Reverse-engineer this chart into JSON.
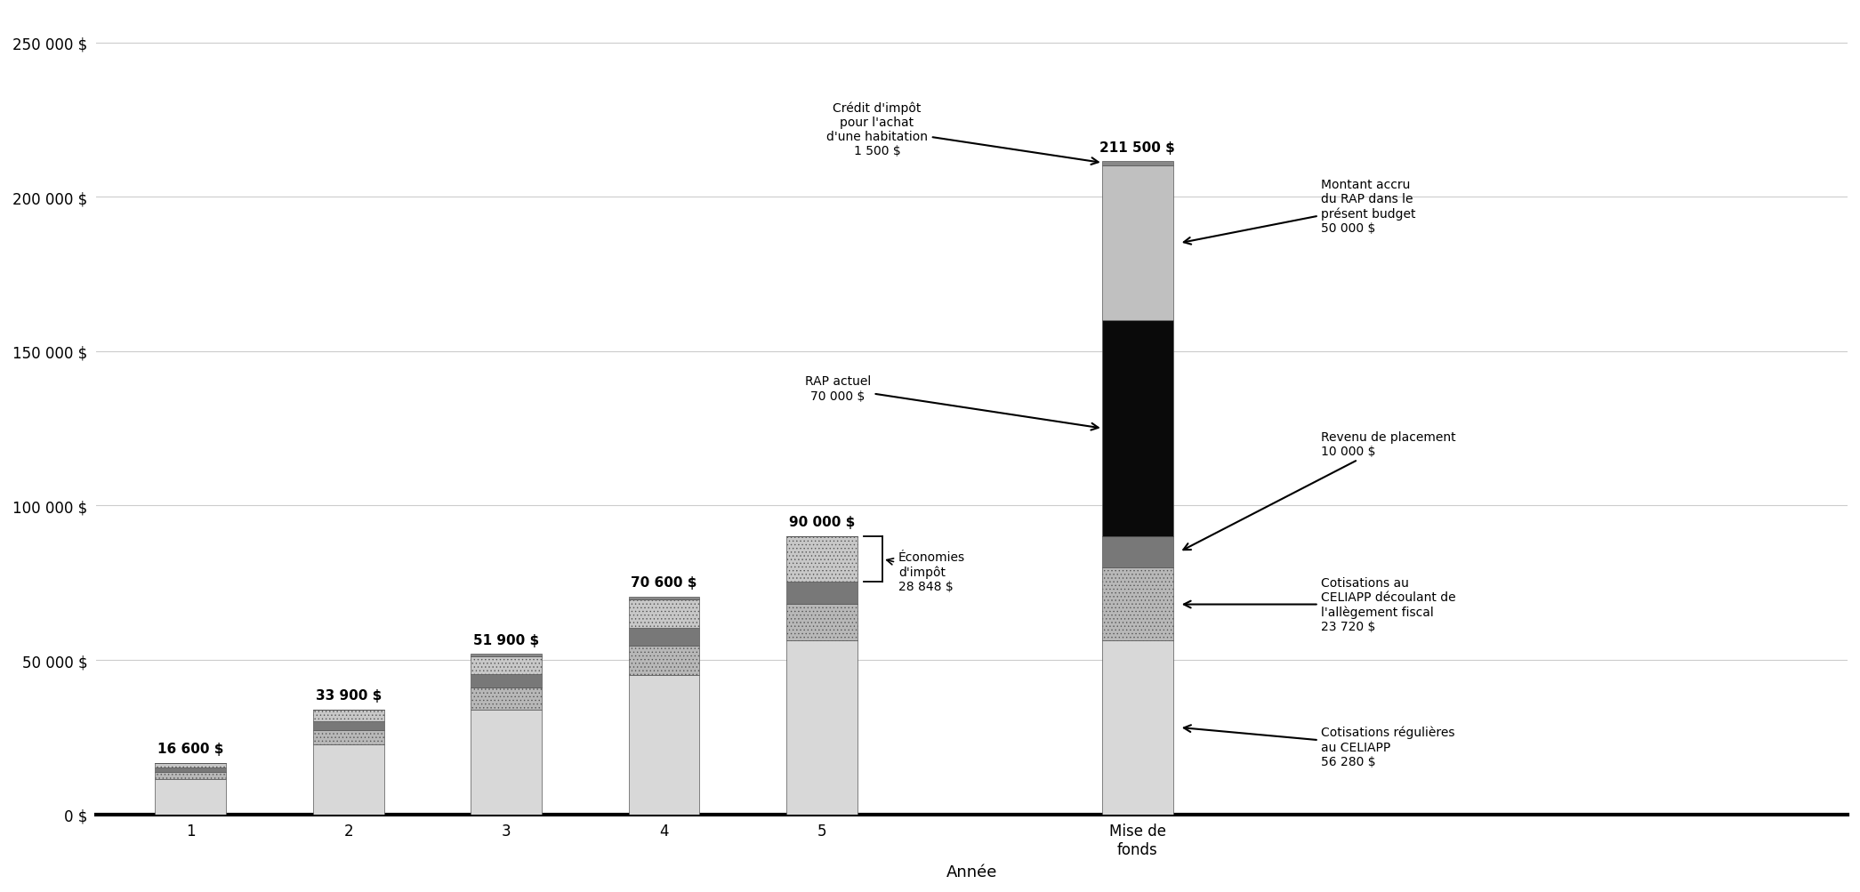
{
  "categories": [
    "1",
    "2",
    "3",
    "4",
    "5",
    "Mise de\nfonds"
  ],
  "xlabel": "Année",
  "ylim": [
    0,
    260000
  ],
  "yticks": [
    0,
    50000,
    100000,
    150000,
    200000,
    250000
  ],
  "ytick_labels": [
    "0 $",
    "50 000 $",
    "100 000 $",
    "150 000 $",
    "200 000 $",
    "250 000 $"
  ],
  "bar_totals": [
    "16 600 $",
    "33 900 $",
    "51 900 $",
    "70 600 $",
    "90 000 $",
    "211 500 $"
  ],
  "totals_numeric": [
    16600,
    33900,
    51900,
    70600,
    90000,
    211500
  ],
  "segments": {
    "regular": [
      11280,
      22560,
      33840,
      45120,
      56280,
      56280
    ],
    "tax_relief": [
      2370,
      4740,
      7110,
      9480,
      11840,
      23720
    ],
    "investment": [
      1450,
      2900,
      4350,
      5800,
      7300,
      10000
    ],
    "economies": [
      1500,
      3700,
      5990,
      9200,
      14580,
      0
    ],
    "rap_actuel": [
      0,
      0,
      0,
      0,
      0,
      70000
    ],
    "rap_budget": [
      0,
      0,
      0,
      0,
      0,
      50000
    ],
    "credit_impot": [
      0,
      0,
      610,
      1000,
      0,
      1500
    ]
  },
  "colors": {
    "regular": "#d8d8d8",
    "tax_relief": "#b8b8b8",
    "investment": "#787878",
    "economies": "#c8c8c8",
    "rap_actuel": "#0a0a0a",
    "rap_budget": "#c0c0c0",
    "credit_impot": "#888888"
  },
  "hatches": {
    "regular": "",
    "tax_relief": "....",
    "investment": "",
    "economies": "....",
    "rap_actuel": "",
    "rap_budget": "",
    "credit_impot": ""
  },
  "background_color": "#ffffff",
  "bar_width": 0.45,
  "xlim": [
    -0.6,
    7.8
  ],
  "font_size_ticks": 12,
  "font_size_labels": 13,
  "font_size_annot": 10,
  "font_size_totals": 11
}
